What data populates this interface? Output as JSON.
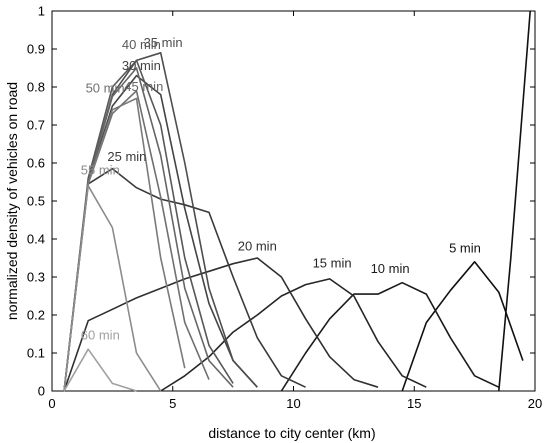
{
  "chart_data": {
    "type": "line",
    "title": "",
    "xlabel": "distance to city center (km)",
    "ylabel": "normalized density of vehicles on road",
    "xlim": [
      0,
      20
    ],
    "ylim": [
      0,
      1
    ],
    "xticks": [
      0,
      5,
      10,
      15,
      20
    ],
    "yticks": [
      0,
      0.1,
      0.2,
      0.3,
      0.4,
      0.5,
      0.6,
      0.7,
      0.8,
      0.9,
      1
    ],
    "xtick_labels": [
      "0",
      "5",
      "10",
      "15",
      "20"
    ],
    "ytick_labels": [
      "0",
      "0.1",
      "0.2",
      "0.3",
      "0.4",
      "0.5",
      "0.6",
      "0.7",
      "0.8",
      "0.9",
      "1"
    ],
    "grid": false,
    "legend": "none",
    "series": [
      {
        "name": "5 min",
        "color": "#111111",
        "label_pos": [
          17.1,
          0.365
        ],
        "x": [
          14.5,
          15.5,
          16.5,
          17.5,
          18.5,
          19.5
        ],
        "y": [
          0.0,
          0.18,
          0.265,
          0.34,
          0.26,
          0.08
        ]
      },
      {
        "name": "",
        "color": "#111111",
        "label_pos": null,
        "x": [
          18.5,
          19.0,
          19.8
        ],
        "y": [
          0.0,
          0.35,
          1.0
        ]
      },
      {
        "name": "10 min",
        "color": "#1c1c1c",
        "label_pos": [
          14.0,
          0.31
        ],
        "x": [
          9.5,
          10.5,
          11.5,
          12.5,
          13.5,
          14.5,
          15.5,
          16.5,
          17.5,
          18.5
        ],
        "y": [
          0.0,
          0.1,
          0.19,
          0.255,
          0.255,
          0.285,
          0.255,
          0.14,
          0.04,
          0.01
        ]
      },
      {
        "name": "15 min",
        "color": "#262626",
        "label_pos": [
          11.6,
          0.325
        ],
        "x": [
          4.5,
          5.5,
          6.5,
          7.5,
          8.5,
          9.5,
          10.5,
          11.5,
          12.5,
          13.5,
          14.5,
          15.5
        ],
        "y": [
          0.0,
          0.04,
          0.09,
          0.155,
          0.2,
          0.25,
          0.28,
          0.295,
          0.25,
          0.13,
          0.04,
          0.01
        ]
      },
      {
        "name": "20 min",
        "color": "#303030",
        "label_pos": [
          8.5,
          0.37
        ],
        "x": [
          0.5,
          1.5,
          2.5,
          3.5,
          4.5,
          5.5,
          6.5,
          7.5,
          8.5,
          9.5,
          10.5,
          11.5,
          12.5,
          13.5
        ],
        "y": [
          0.0,
          0.185,
          0.215,
          0.245,
          0.27,
          0.295,
          0.315,
          0.335,
          0.35,
          0.3,
          0.19,
          0.09,
          0.03,
          0.01
        ]
      },
      {
        "name": "25 min",
        "color": "#3a3a3a",
        "label_pos": [
          3.1,
          0.605
        ],
        "x": [
          0.5,
          1.5,
          2.5,
          3.5,
          4.5,
          5.5,
          6.5,
          7.5,
          8.5,
          9.5,
          10.5
        ],
        "y": [
          0.0,
          0.545,
          0.585,
          0.535,
          0.505,
          0.49,
          0.47,
          0.3,
          0.14,
          0.04,
          0.01
        ]
      },
      {
        "name": "30 min",
        "color": "#444444",
        "label_pos": [
          3.7,
          0.845
        ],
        "x": [
          0.5,
          1.5,
          2.5,
          3.5,
          4.5,
          5.5,
          6.5,
          7.5,
          8.5
        ],
        "y": [
          0.0,
          0.55,
          0.75,
          0.83,
          0.78,
          0.48,
          0.23,
          0.08,
          0.01
        ]
      },
      {
        "name": "35 min",
        "color": "#4e4e4e",
        "label_pos": [
          4.6,
          0.905
        ],
        "x": [
          0.5,
          1.5,
          2.5,
          3.5,
          4.5,
          5.5,
          6.5,
          7.5,
          8.5
        ],
        "y": [
          0.0,
          0.55,
          0.78,
          0.87,
          0.89,
          0.6,
          0.27,
          0.08,
          0.01
        ]
      },
      {
        "name": "40 min",
        "color": "#585858",
        "label_pos": [
          3.7,
          0.9
        ],
        "x": [
          0.5,
          1.5,
          2.5,
          3.5,
          4.5,
          5.5,
          6.5,
          7.5
        ],
        "y": [
          0.0,
          0.56,
          0.8,
          0.87,
          0.7,
          0.35,
          0.12,
          0.02
        ]
      },
      {
        "name": "45 min",
        "color": "#666666",
        "label_pos": [
          3.8,
          0.79
        ],
        "x": [
          0.5,
          1.5,
          2.5,
          3.5,
          4.5,
          5.5,
          6.5,
          7.5
        ],
        "y": [
          0.0,
          0.55,
          0.775,
          0.85,
          0.62,
          0.27,
          0.08,
          0.01
        ]
      },
      {
        "name": "50 min",
        "color": "#707070",
        "label_pos": [
          2.2,
          0.785
        ],
        "x": [
          0.5,
          1.5,
          2.5,
          3.5,
          4.5,
          5.5,
          6.5
        ],
        "y": [
          0.0,
          0.545,
          0.73,
          0.79,
          0.51,
          0.18,
          0.03
        ]
      },
      {
        "name": "",
        "color": "#7a7a7a",
        "label_pos": null,
        "x": [
          0.5,
          1.5,
          2.5,
          3.5,
          4.5,
          5.5
        ],
        "y": [
          0.0,
          0.545,
          0.74,
          0.77,
          0.35,
          0.06
        ]
      },
      {
        "name": "55 min",
        "color": "#8c8c8c",
        "label_pos": [
          2.0,
          0.57
        ],
        "x": [
          0.5,
          1.5,
          2.5,
          3.5,
          4.5
        ],
        "y": [
          0.0,
          0.54,
          0.43,
          0.1,
          0.0
        ]
      },
      {
        "name": "60 min",
        "color": "#a0a0a0",
        "label_pos": [
          2.0,
          0.135
        ],
        "x": [
          0.5,
          1.5,
          2.5,
          3.5
        ],
        "y": [
          0.0,
          0.11,
          0.02,
          0.0
        ]
      }
    ]
  }
}
